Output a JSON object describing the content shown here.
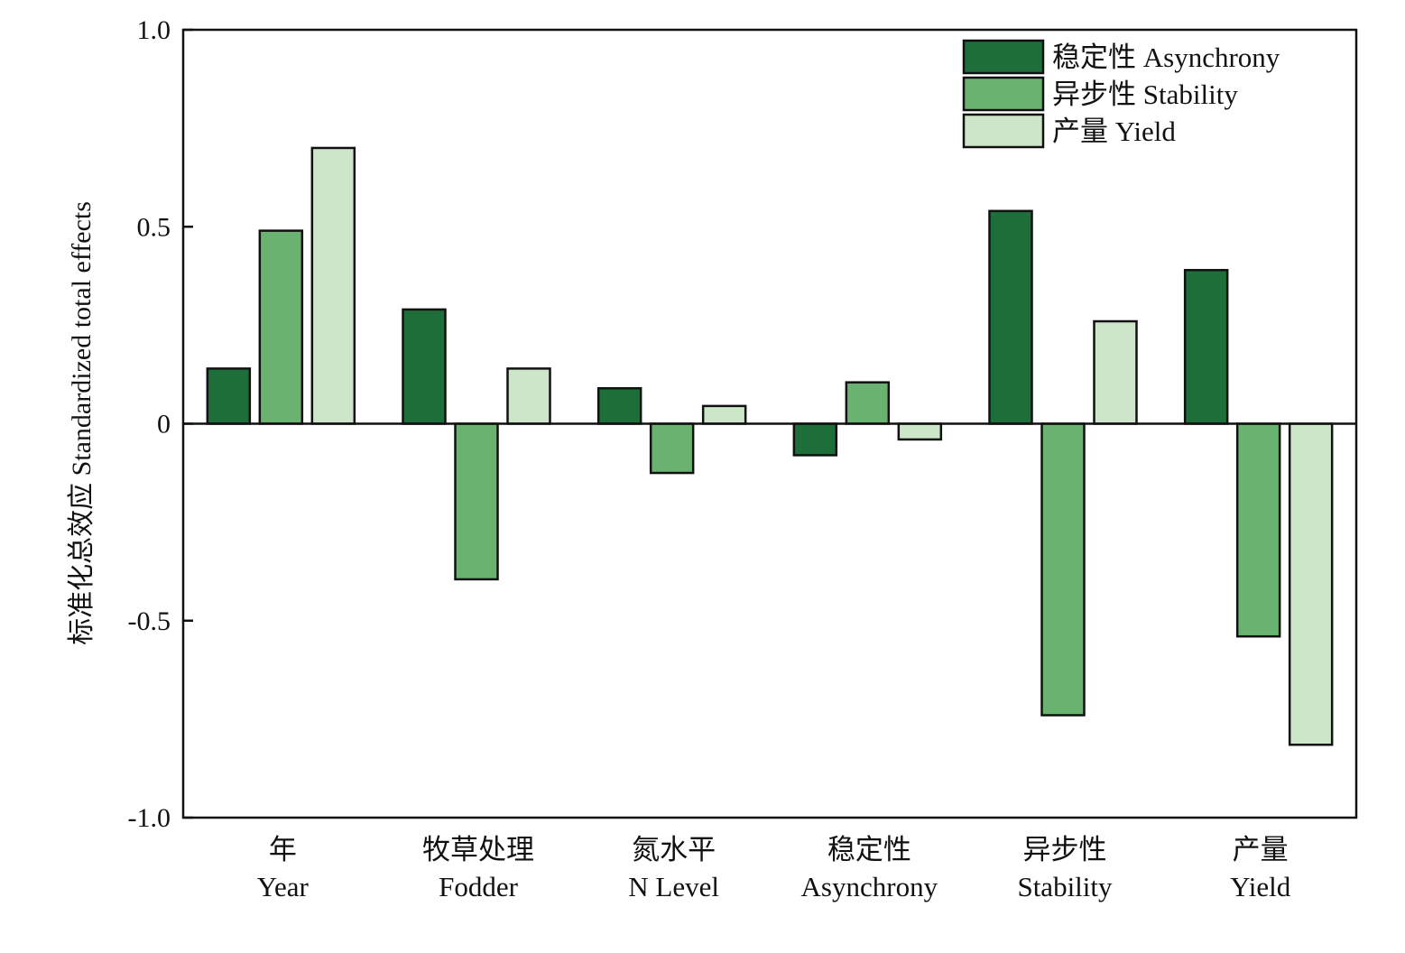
{
  "chart_data": {
    "type": "bar",
    "title": "",
    "xlabel": "",
    "ylabel": "标准化总效应 Standardized total effects",
    "ylim": [
      -1.0,
      1.0
    ],
    "yticks": [
      {
        "value": 1.0,
        "label": "1.0"
      },
      {
        "value": 0.5,
        "label": "0.5"
      },
      {
        "value": 0,
        "label": "0"
      },
      {
        "value": -0.5,
        "label": "-0.5"
      },
      {
        "value": -1.0,
        "label": "-1.0"
      }
    ],
    "categories": [
      {
        "zh": "年",
        "en": "Year"
      },
      {
        "zh": "牧草处理",
        "en": "Fodder"
      },
      {
        "zh": "氮水平",
        "en": "N Level"
      },
      {
        "zh": "稳定性",
        "en": "Asynchrony"
      },
      {
        "zh": "异步性",
        "en": "Stability"
      },
      {
        "zh": "产量",
        "en": "Yield"
      }
    ],
    "series": [
      {
        "name": "稳定性 Asynchrony",
        "color": "#1e6e3a",
        "values": [
          0.14,
          0.29,
          0.09,
          -0.08,
          0.54,
          0.39
        ]
      },
      {
        "name": "异步性 Stability",
        "color": "#6ab26f",
        "values": [
          0.49,
          -0.395,
          -0.125,
          0.105,
          -0.74,
          -0.54
        ]
      },
      {
        "name": "产量 Yield",
        "color": "#cde5c8",
        "values": [
          0.7,
          0.14,
          0.045,
          -0.04,
          0.26,
          -0.815
        ]
      }
    ],
    "grid": false,
    "legend_position": "top-right"
  }
}
